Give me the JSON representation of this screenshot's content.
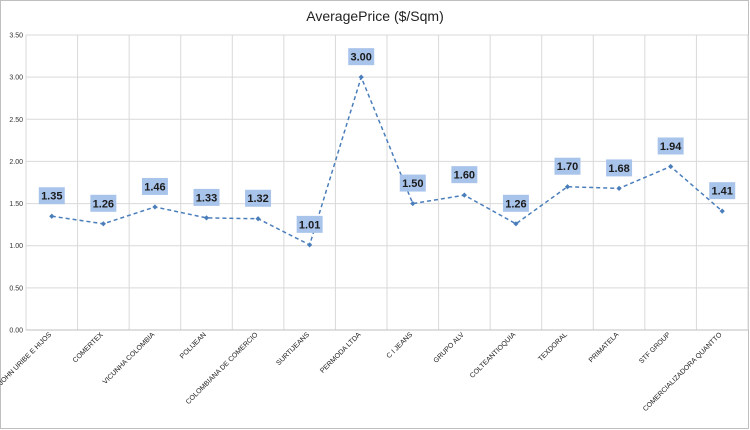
{
  "chart_data": {
    "type": "line",
    "title": "AveragePrice ($/Sqm)",
    "xlabel": "",
    "ylabel": "",
    "ylim": [
      0,
      3.5
    ],
    "yticks": [
      "0.00",
      "0.50",
      "1.00",
      "1.50",
      "2.00",
      "2.50",
      "3.00",
      "3.50"
    ],
    "categories": [
      "JOHN URIBE E HIJOS",
      "COMERTEX",
      "VICUNHA COLOMBIA",
      "POLIJEAN",
      "COLOMBIANA DE COMERCIO",
      "SURTIJEANS",
      "PERMODA LTDA",
      "C I JEANS",
      "GRUPO ALV",
      "COLTEANTIOQUIA",
      "TEXDORAL",
      "PRIMATELA",
      "STF GROUP",
      "COMERCIALIZADORA QUANTTO"
    ],
    "values": [
      1.35,
      1.26,
      1.46,
      1.33,
      1.32,
      1.01,
      3.0,
      1.5,
      1.6,
      1.26,
      1.7,
      1.68,
      1.94,
      1.41
    ],
    "data_labels": [
      "1.35",
      "1.26",
      "1.46",
      "1.33",
      "1.32",
      "1.01",
      "3.00",
      "1.50",
      "1.60",
      "1.26",
      "1.70",
      "1.68",
      "1.94",
      "1.41"
    ],
    "grid": true,
    "line_style": "dashed",
    "colors": {
      "line": "#4a7ebb",
      "label_box": "#a9c4eb",
      "grid": "#d9d9d9"
    }
  }
}
